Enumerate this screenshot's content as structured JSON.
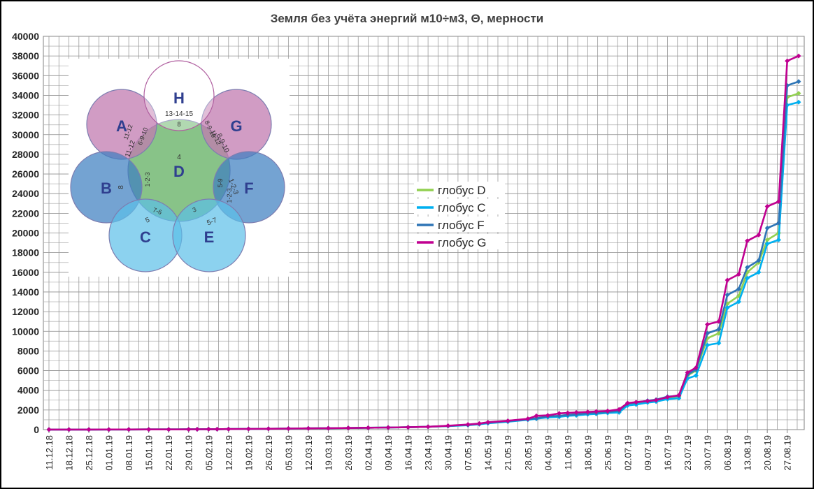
{
  "chart_data": {
    "type": "line",
    "title": "Земля  без учёта  энергий м10÷м3, Θ, мерности",
    "xlabel": "",
    "ylabel": "",
    "ylim": [
      0,
      40000
    ],
    "y_ticks": [
      0,
      2000,
      4000,
      6000,
      8000,
      10000,
      12000,
      14000,
      16000,
      18000,
      20000,
      22000,
      24000,
      26000,
      28000,
      30000,
      32000,
      34000,
      36000,
      38000,
      40000
    ],
    "x_tick_labels": [
      "11.12.18",
      "18.12.18",
      "25.12.18",
      "01.01.19",
      "08.01.19",
      "15.01.19",
      "22.01.19",
      "29.01.19",
      "05.02.19",
      "12.02.19",
      "19.02.19",
      "26.02.19",
      "05.03.19",
      "12.03.19",
      "19.03.19",
      "26.03.19",
      "02.04.19",
      "09.04.19",
      "16.04.19",
      "23.04.19",
      "30.04.19",
      "07.05.19",
      "14.05.19",
      "21.05.19",
      "28.05.19",
      "04.06.19",
      "11.06.19",
      "18.06.19",
      "25.06.19",
      "02.07.19",
      "09.07.19",
      "16.07.19",
      "23.07.19",
      "30.07.19",
      "06.08.19",
      "13.08.19",
      "20.08.19",
      "27.08.19"
    ],
    "grid": true,
    "legend_position": "center-right",
    "x": [
      "11.12.18",
      "18.12.18",
      "25.12.18",
      "01.01.19",
      "08.01.19",
      "15.01.19",
      "22.01.19",
      "29.01.19",
      "01.02.19",
      "05.02.19",
      "08.02.19",
      "12.02.19",
      "19.02.19",
      "26.02.19",
      "05.03.19",
      "12.03.19",
      "19.03.19",
      "26.03.19",
      "02.04.19",
      "09.04.19",
      "16.04.19",
      "23.04.19",
      "30.04.19",
      "07.05.19",
      "11.05.19",
      "14.05.19",
      "21.05.19",
      "28.05.19",
      "31.05.19",
      "04.06.19",
      "08.06.19",
      "11.06.19",
      "14.06.19",
      "18.06.19",
      "21.06.19",
      "25.06.19",
      "29.06.19",
      "02.07.19",
      "05.07.19",
      "09.07.19",
      "12.07.19",
      "16.07.19",
      "20.07.19",
      "23.07.19",
      "26.07.19",
      "30.07.19",
      "03.08.19",
      "06.08.19",
      "10.08.19",
      "13.08.19",
      "17.08.19",
      "20.08.19",
      "24.08.19",
      "27.08.19",
      "31.08.19"
    ],
    "series": [
      {
        "name": "глобус D",
        "color": "#92d050",
        "values": [
          5,
          8,
          10,
          13,
          15,
          18,
          22,
          28,
          34,
          40,
          46,
          55,
          70,
          85,
          105,
          125,
          145,
          165,
          190,
          210,
          240,
          290,
          360,
          480,
          580,
          700,
          850,
          1050,
          1150,
          1350,
          1400,
          1500,
          1550,
          1650,
          1700,
          1800,
          1900,
          2550,
          2650,
          2850,
          2950,
          3250,
          3350,
          5500,
          6000,
          9300,
          9800,
          12800,
          13600,
          16000,
          17000,
          19300,
          20000,
          33800,
          34200
        ]
      },
      {
        "name": "глобус C",
        "color": "#00b0f0",
        "values": [
          5,
          8,
          10,
          13,
          15,
          18,
          22,
          28,
          34,
          40,
          46,
          55,
          70,
          85,
          105,
          125,
          145,
          165,
          190,
          210,
          240,
          290,
          360,
          450,
          550,
          650,
          800,
          1000,
          1100,
          1250,
          1300,
          1400,
          1450,
          1550,
          1600,
          1700,
          1750,
          2450,
          2550,
          2750,
          2850,
          3100,
          3200,
          5200,
          5500,
          8600,
          8800,
          12400,
          13000,
          15400,
          16000,
          18900,
          19300,
          33000,
          33300
        ]
      },
      {
        "name": "глобус F",
        "color": "#2e75b6",
        "values": [
          5,
          8,
          10,
          13,
          15,
          18,
          22,
          28,
          34,
          40,
          46,
          55,
          70,
          85,
          105,
          125,
          145,
          165,
          190,
          210,
          240,
          290,
          380,
          480,
          580,
          700,
          850,
          1050,
          1150,
          1350,
          1400,
          1500,
          1550,
          1650,
          1700,
          1800,
          1900,
          2650,
          2750,
          2950,
          3050,
          3350,
          3450,
          5600,
          6100,
          9800,
          10200,
          13700,
          14300,
          16500,
          17200,
          20500,
          21000,
          35000,
          35400
        ]
      },
      {
        "name": "глобус G",
        "color": "#c00090",
        "values": [
          5,
          8,
          10,
          13,
          15,
          18,
          22,
          28,
          34,
          40,
          46,
          55,
          70,
          85,
          105,
          125,
          145,
          165,
          190,
          210,
          240,
          290,
          400,
          520,
          620,
          750,
          900,
          1100,
          1400,
          1450,
          1650,
          1700,
          1750,
          1800,
          1850,
          1900,
          2050,
          2700,
          2800,
          2900,
          3000,
          3300,
          3500,
          5800,
          6300,
          10700,
          11000,
          15200,
          15800,
          19200,
          19800,
          22700,
          23200,
          37500,
          38000
        ]
      }
    ]
  },
  "diagram": {
    "circles": [
      {
        "label": "H",
        "color": "#ffffff",
        "note": "13-14-15"
      },
      {
        "label": "A",
        "color": "#c27bb0",
        "note": "11-12"
      },
      {
        "label": "G",
        "color": "#c27bb0",
        "note": "8-9-10"
      },
      {
        "label": "D",
        "color": "#5aac5a",
        "note": "4"
      },
      {
        "label": "B",
        "color": "#3f7fc0",
        "note": "8"
      },
      {
        "label": "F",
        "color": "#3f7fc0",
        "note": "1-2-3"
      },
      {
        "label": "C",
        "color": "#5bbfe8",
        "note": "5"
      },
      {
        "label": "E",
        "color": "#5bbfe8",
        "note": "5-7"
      }
    ],
    "small_labels": [
      "8",
      "6-9-10",
      "11-12",
      "1-2-3",
      "8-9-10",
      "11-12",
      "5-9",
      "1-2-3",
      "7-6",
      "3"
    ]
  }
}
